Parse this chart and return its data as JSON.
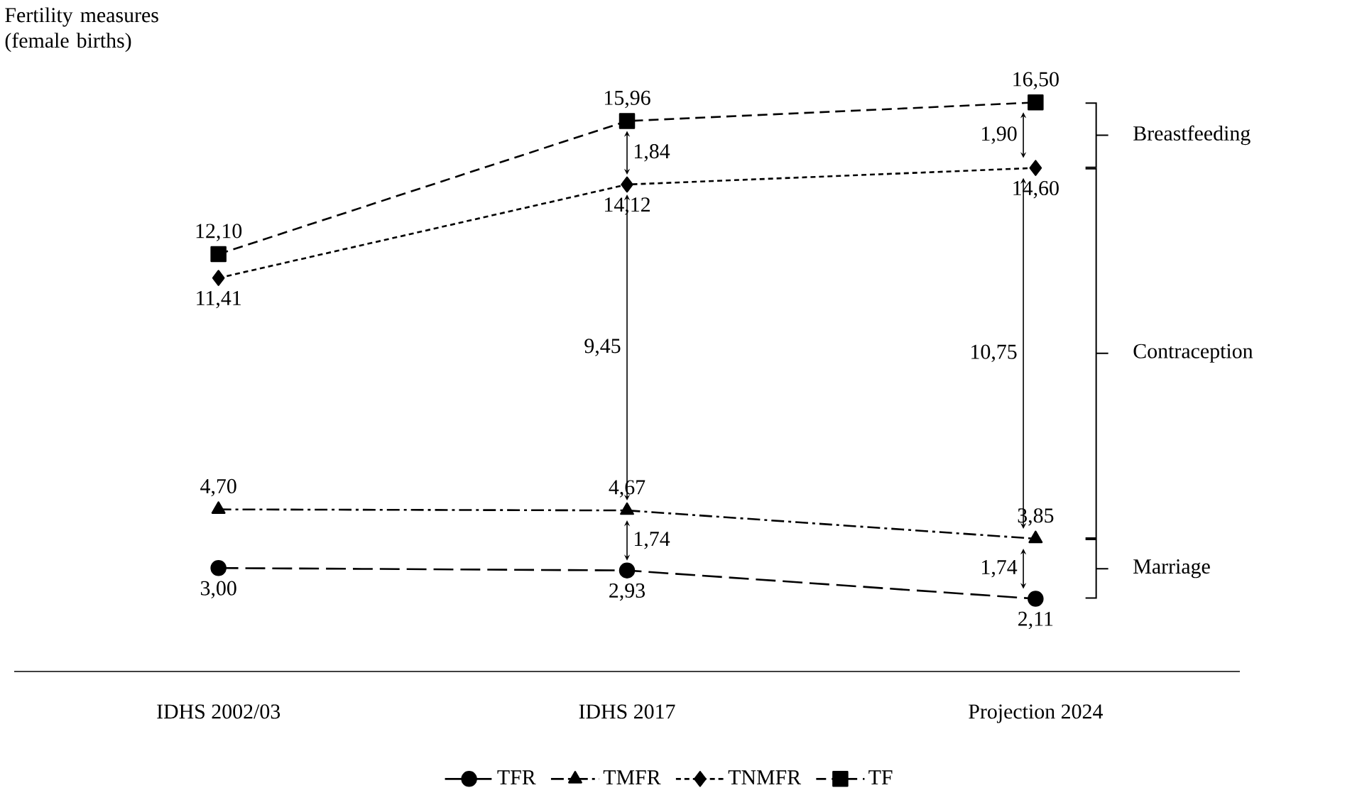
{
  "chart_data": {
    "type": "line",
    "ylabel": "Fertility measures (female births)",
    "categories": [
      "IDHS 2002/03",
      "IDHS 2017",
      "Projection 2024"
    ],
    "series": [
      {
        "name": "TFR",
        "color": "#000000",
        "marker": "circle",
        "line_style": "long dashed",
        "values": [
          3.0,
          2.93,
          2.11
        ],
        "value_labels": [
          "3,00",
          "2,93",
          "2,11"
        ]
      },
      {
        "name": "TMFR",
        "color": "#000000",
        "marker": "triangle",
        "line_style": "dash dotted",
        "values": [
          4.7,
          4.67,
          3.85
        ],
        "value_labels": [
          "4,70",
          "4,67",
          "3,85"
        ]
      },
      {
        "name": "TNMFR",
        "color": "#000000",
        "marker": "diamond",
        "line_style": "dotted",
        "values": [
          11.41,
          14.12,
          14.6
        ],
        "value_labels": [
          "11,41",
          "14,12",
          "14,60"
        ]
      },
      {
        "name": "TF",
        "color": "#000000",
        "marker": "square",
        "line_style": "dashed",
        "values": [
          12.1,
          15.96,
          16.5
        ],
        "value_labels": [
          "12,10",
          "15,96",
          "16,50"
        ]
      }
    ],
    "annotations": [
      "Breastfeeding",
      "Contraception",
      "Marriage",
      "1,84",
      "9,45",
      "1,74",
      "1,90",
      "10,75",
      "1,74"
    ],
    "legend": "bottom"
  }
}
